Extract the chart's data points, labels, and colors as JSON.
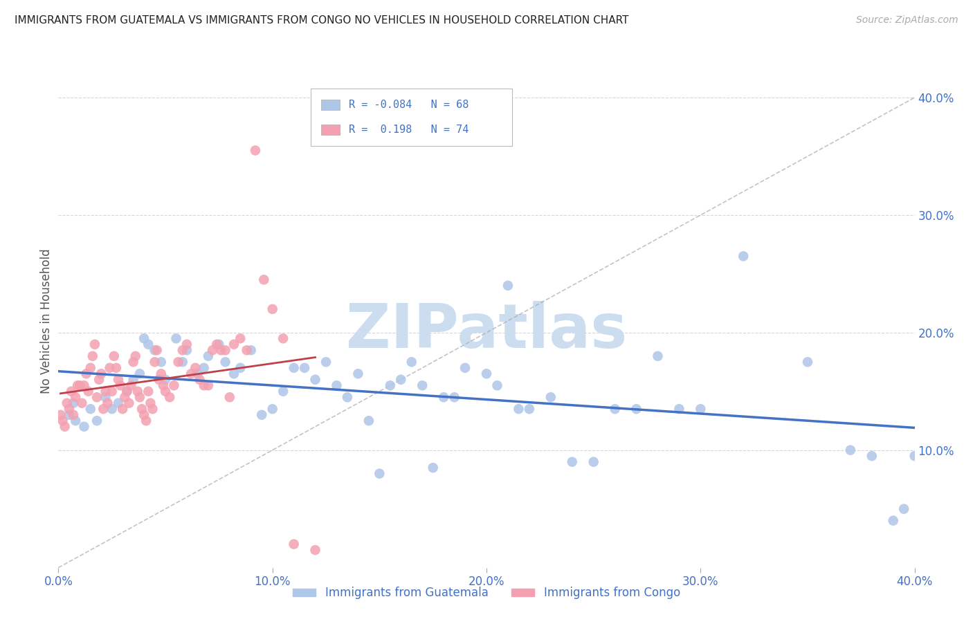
{
  "title": "IMMIGRANTS FROM GUATEMALA VS IMMIGRANTS FROM CONGO NO VEHICLES IN HOUSEHOLD CORRELATION CHART",
  "source": "Source: ZipAtlas.com",
  "ylabel_left": "No Vehicles in Household",
  "legend_label1": "Immigrants from Guatemala",
  "legend_label2": "Immigrants from Congo",
  "r1": "-0.084",
  "n1": "68",
  "r2": "0.198",
  "n2": "74",
  "color_guatemala": "#aec6e8",
  "color_congo": "#f4a0b0",
  "color_line_guatemala": "#4472c4",
  "color_line_congo": "#c0404a",
  "color_axis_labels": "#4472c4",
  "watermark_text": "ZIPatlas",
  "watermark_color": "#cdddf0",
  "xlim": [
    0.0,
    0.4
  ],
  "ylim": [
    0.0,
    0.42
  ],
  "xticks": [
    0.0,
    0.1,
    0.2,
    0.3,
    0.4
  ],
  "yticks_right": [
    0.1,
    0.2,
    0.3,
    0.4
  ],
  "guatemala_x": [
    0.005,
    0.007,
    0.008,
    0.012,
    0.015,
    0.018,
    0.022,
    0.025,
    0.028,
    0.032,
    0.035,
    0.038,
    0.04,
    0.042,
    0.045,
    0.048,
    0.05,
    0.055,
    0.058,
    0.06,
    0.065,
    0.068,
    0.07,
    0.075,
    0.078,
    0.082,
    0.085,
    0.09,
    0.095,
    0.1,
    0.105,
    0.11,
    0.115,
    0.12,
    0.125,
    0.13,
    0.135,
    0.14,
    0.145,
    0.15,
    0.155,
    0.16,
    0.165,
    0.17,
    0.175,
    0.18,
    0.185,
    0.19,
    0.2,
    0.205,
    0.21,
    0.215,
    0.22,
    0.23,
    0.24,
    0.25,
    0.26,
    0.27,
    0.28,
    0.29,
    0.3,
    0.32,
    0.35,
    0.37,
    0.38,
    0.39,
    0.395,
    0.4
  ],
  "guatemala_y": [
    0.13,
    0.14,
    0.125,
    0.12,
    0.135,
    0.125,
    0.145,
    0.135,
    0.14,
    0.15,
    0.16,
    0.165,
    0.195,
    0.19,
    0.185,
    0.175,
    0.16,
    0.195,
    0.175,
    0.185,
    0.165,
    0.17,
    0.18,
    0.19,
    0.175,
    0.165,
    0.17,
    0.185,
    0.13,
    0.135,
    0.15,
    0.17,
    0.17,
    0.16,
    0.175,
    0.155,
    0.145,
    0.165,
    0.125,
    0.08,
    0.155,
    0.16,
    0.175,
    0.155,
    0.085,
    0.145,
    0.145,
    0.17,
    0.165,
    0.155,
    0.24,
    0.135,
    0.135,
    0.145,
    0.09,
    0.09,
    0.135,
    0.135,
    0.18,
    0.135,
    0.135,
    0.265,
    0.175,
    0.1,
    0.095,
    0.04,
    0.05,
    0.095
  ],
  "congo_x": [
    0.001,
    0.002,
    0.003,
    0.004,
    0.005,
    0.006,
    0.007,
    0.008,
    0.009,
    0.01,
    0.011,
    0.012,
    0.013,
    0.014,
    0.015,
    0.016,
    0.017,
    0.018,
    0.019,
    0.02,
    0.021,
    0.022,
    0.023,
    0.024,
    0.025,
    0.026,
    0.027,
    0.028,
    0.029,
    0.03,
    0.031,
    0.032,
    0.033,
    0.034,
    0.035,
    0.036,
    0.037,
    0.038,
    0.039,
    0.04,
    0.041,
    0.042,
    0.043,
    0.044,
    0.045,
    0.046,
    0.047,
    0.048,
    0.049,
    0.05,
    0.052,
    0.054,
    0.056,
    0.058,
    0.06,
    0.062,
    0.064,
    0.066,
    0.068,
    0.07,
    0.072,
    0.074,
    0.076,
    0.078,
    0.08,
    0.082,
    0.085,
    0.088,
    0.092,
    0.096,
    0.1,
    0.105,
    0.11,
    0.12
  ],
  "congo_y": [
    0.13,
    0.125,
    0.12,
    0.14,
    0.135,
    0.15,
    0.13,
    0.145,
    0.155,
    0.155,
    0.14,
    0.155,
    0.165,
    0.15,
    0.17,
    0.18,
    0.19,
    0.145,
    0.16,
    0.165,
    0.135,
    0.15,
    0.14,
    0.17,
    0.15,
    0.18,
    0.17,
    0.16,
    0.155,
    0.135,
    0.145,
    0.15,
    0.14,
    0.155,
    0.175,
    0.18,
    0.15,
    0.145,
    0.135,
    0.13,
    0.125,
    0.15,
    0.14,
    0.135,
    0.175,
    0.185,
    0.16,
    0.165,
    0.155,
    0.15,
    0.145,
    0.155,
    0.175,
    0.185,
    0.19,
    0.165,
    0.17,
    0.16,
    0.155,
    0.155,
    0.185,
    0.19,
    0.185,
    0.185,
    0.145,
    0.19,
    0.195,
    0.185,
    0.355,
    0.245,
    0.22,
    0.195,
    0.02,
    0.015
  ]
}
